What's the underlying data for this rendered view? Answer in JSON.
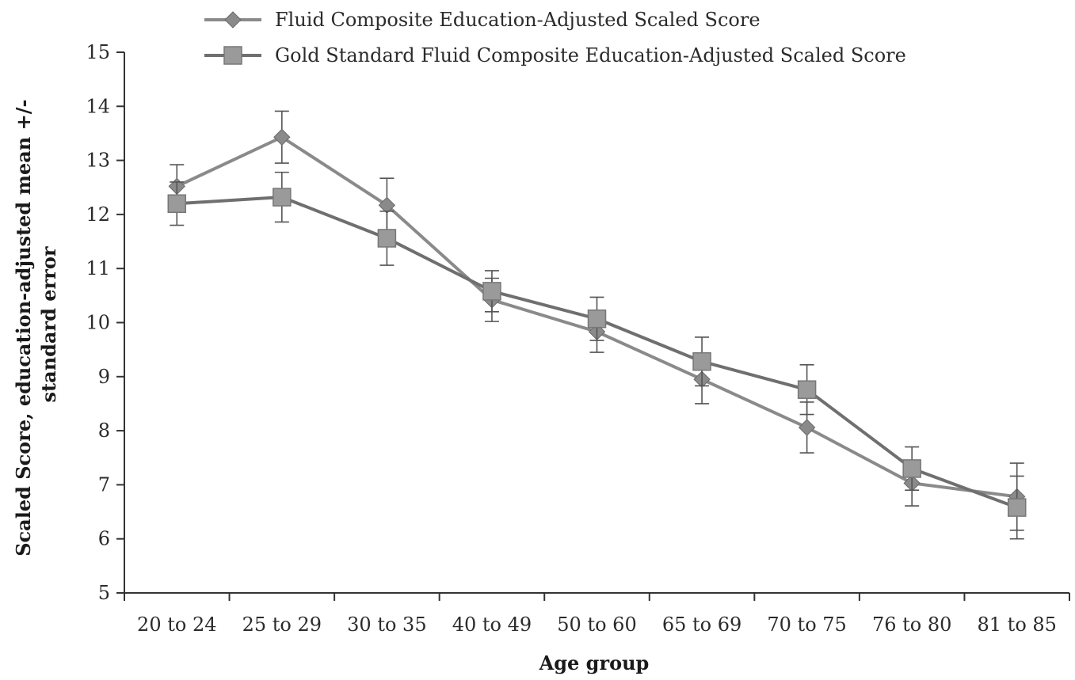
{
  "chart_data": {
    "type": "line",
    "xlabel": "Age group",
    "ylabel_lines": [
      "Scaled Score, education-adjusted mean +/-",
      "standard error"
    ],
    "categories": [
      "20 to 24",
      "25 to 29",
      "30 to 35",
      "40 to 49",
      "50 to 60",
      "65 to 69",
      "70 to 75",
      "76 to 80",
      "81 to 85"
    ],
    "ylim": [
      5,
      15
    ],
    "yticks": [
      5,
      6,
      7,
      8,
      9,
      10,
      11,
      12,
      13,
      14,
      15
    ],
    "grid": false,
    "legend_position": "top",
    "series": [
      {
        "name": "Fluid Composite Education-Adjusted Scaled Score",
        "marker": "diamond",
        "color": "#8a8a8a",
        "values": [
          12.52,
          13.43,
          12.17,
          10.42,
          9.83,
          8.95,
          8.06,
          7.03,
          6.78
        ],
        "error": [
          0.4,
          0.48,
          0.5,
          0.4,
          0.38,
          0.45,
          0.47,
          0.42,
          0.62
        ]
      },
      {
        "name": "Gold Standard Fluid Composite Education-Adjusted Scaled Score",
        "marker": "square",
        "color": "#6f6f6f",
        "values": [
          12.2,
          12.32,
          11.56,
          10.58,
          10.07,
          9.28,
          8.76,
          7.3,
          6.58
        ],
        "error": [
          0.4,
          0.46,
          0.5,
          0.38,
          0.4,
          0.45,
          0.46,
          0.4,
          0.58
        ]
      }
    ]
  }
}
